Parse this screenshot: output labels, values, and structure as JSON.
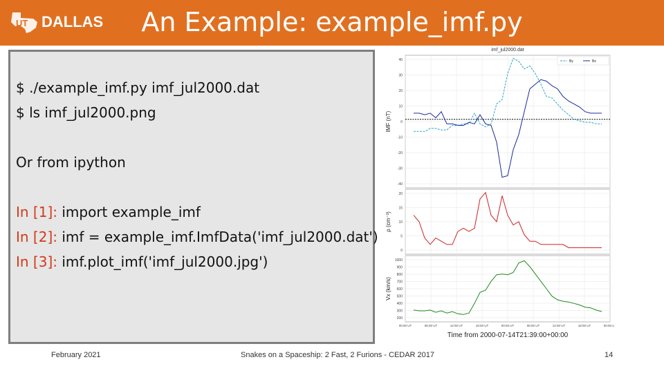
{
  "header": {
    "logo_text": "DALLAS",
    "logo_mark": "UT",
    "title": "An Example: example_imf.py"
  },
  "code": {
    "line1": "$ ./example_imf.py imf_jul2000.dat",
    "line2": "$ ls imf_jul2000.png",
    "line3": "Or from ipython",
    "in1_prompt": "In [1]:",
    "in1_code": " import example_imf",
    "in2_prompt": "In [2]:",
    "in2_code": " imf = example_imf.ImfData('imf_jul2000.dat')",
    "in3_prompt": "In [3]:",
    "in3_code": " imf.plot_imf('imf_jul2000.jpg')"
  },
  "plot": {
    "title": "imf_jul2000.dat",
    "legend": [
      "By",
      "Bz"
    ],
    "ylabel1": "IMF (nT)",
    "ylabel2": "ρ (cm⁻³)",
    "ylabel3": "Vx (km/s)",
    "xlabel": "Time from 2000-07-14T21:39:00+00:00",
    "colors": {
      "by": "#2aa7c8",
      "bz": "#1a2a9a",
      "rho": "#cc2222",
      "vx": "#1a8a1a"
    },
    "y1_ticks": [
      "40",
      "30",
      "20",
      "10",
      "0",
      "-10",
      "-20",
      "-30",
      "-40"
    ],
    "y2_ticks": [
      "20",
      "15",
      "10",
      "5",
      "0"
    ],
    "y3_ticks": [
      "1000",
      "900",
      "800",
      "700",
      "600",
      "500",
      "400",
      "300",
      "200"
    ],
    "x_ticks": [
      "00:00 UT",
      "06:00 UT",
      "12:00 UT",
      "18:00 UT",
      "00:00 UT",
      "06:00 UT",
      "12:00 UT",
      "18:00 UT",
      "00:00 UT"
    ]
  },
  "chart_data": [
    {
      "type": "line",
      "ylabel": "IMF (nT)",
      "ylim": [
        -45,
        42
      ],
      "grid": true,
      "legend": "top-right",
      "series": [
        {
          "name": "By",
          "values": [
            -8,
            -8,
            -8,
            -6,
            -6,
            -7,
            -7,
            -4,
            -4,
            -3,
            -3,
            4,
            -3,
            -5,
            -3,
            10,
            13,
            30,
            40,
            38,
            33,
            35,
            30,
            23,
            15,
            14,
            10,
            6,
            3,
            0,
            -1,
            -2,
            -2,
            -3,
            -3
          ]
        },
        {
          "name": "Bz",
          "values": [
            4,
            4,
            3,
            4,
            1,
            5,
            -3,
            -3,
            -4,
            -4,
            -2,
            -3,
            3,
            -3,
            -4,
            -15,
            -38,
            -37,
            -20,
            -10,
            5,
            20,
            23,
            26,
            25,
            22,
            20,
            15,
            12,
            10,
            8,
            5,
            4,
            4,
            4
          ]
        }
      ]
    },
    {
      "type": "line",
      "ylabel": "ρ (cm⁻³)",
      "ylim": [
        0,
        20
      ],
      "series": [
        {
          "values": [
            12,
            10,
            5,
            3,
            5,
            4,
            3,
            3,
            7,
            8,
            7,
            8,
            17,
            19,
            12,
            10,
            18,
            12,
            9,
            10,
            6,
            4,
            4,
            3,
            3,
            3,
            3,
            3,
            2,
            2,
            2,
            2,
            2,
            2,
            2
          ]
        }
      ]
    },
    {
      "type": "line",
      "ylabel": "Vx (km/s)",
      "ylim": [
        150,
        1050
      ],
      "series": [
        {
          "values": [
            310,
            300,
            300,
            310,
            280,
            300,
            270,
            290,
            260,
            250,
            270,
            400,
            550,
            580,
            700,
            790,
            800,
            790,
            820,
            950,
            980,
            900,
            800,
            700,
            600,
            500,
            450,
            430,
            420,
            400,
            380,
            350,
            340,
            310,
            290
          ]
        }
      ]
    }
  ],
  "footer": {
    "date": "February 2021",
    "center": "Snakes on a Spaceship: 2 Fast, 2 Furions - CEDAR 2017",
    "page": "14"
  }
}
